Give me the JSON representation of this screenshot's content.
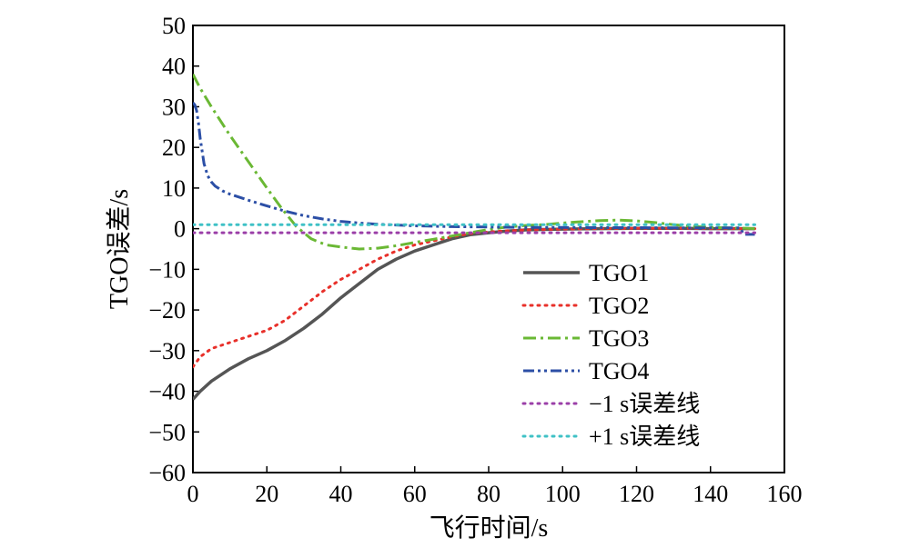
{
  "chart_data": {
    "type": "line",
    "title": "",
    "xlabel": "飞行时间/s",
    "ylabel": "TGO误差/s",
    "xlim": [
      0,
      160
    ],
    "ylim": [
      -60,
      50
    ],
    "xticks": [
      "0",
      "20",
      "40",
      "60",
      "80",
      "100",
      "120",
      "140",
      "160"
    ],
    "yticks": [
      "50",
      "40",
      "30",
      "20",
      "10",
      "0",
      "−10",
      "−20",
      "−30",
      "−40",
      "−50",
      "−60"
    ],
    "grid": false,
    "legend_position": "bottom-right",
    "series": [
      {
        "name": "TGO1",
        "color": "#555555",
        "dash": "solid",
        "x": [
          0,
          2,
          5,
          10,
          15,
          20,
          25,
          30,
          35,
          40,
          45,
          50,
          55,
          60,
          65,
          70,
          75,
          80,
          85,
          90,
          95,
          100,
          110,
          120,
          130,
          140,
          150,
          152
        ],
        "y": [
          -42,
          -40,
          -37.5,
          -34.5,
          -32,
          -30,
          -27.5,
          -24.5,
          -21,
          -17,
          -13.5,
          -10,
          -7.5,
          -5.5,
          -4,
          -2.5,
          -1.5,
          -1,
          -0.6,
          -0.3,
          -0.2,
          -0.1,
          0,
          0.1,
          0.1,
          0,
          0,
          0
        ]
      },
      {
        "name": "TGO2",
        "color": "#e8302a",
        "dash": "dotted",
        "x": [
          0,
          2,
          5,
          10,
          15,
          20,
          25,
          30,
          35,
          40,
          45,
          50,
          55,
          60,
          65,
          70,
          75,
          80,
          85,
          90,
          95,
          100,
          110,
          120,
          130,
          140,
          150,
          152
        ],
        "y": [
          -34,
          -31.5,
          -29.5,
          -28,
          -26.5,
          -25,
          -22.5,
          -19,
          -15.5,
          -12.5,
          -10,
          -7.5,
          -5.5,
          -4,
          -3,
          -2,
          -1.2,
          -0.8,
          -0.5,
          -0.3,
          -0.2,
          -0.1,
          0,
          0.1,
          0.1,
          0,
          0,
          0
        ]
      },
      {
        "name": "TGO3",
        "color": "#6ab834",
        "dash": "dashdot",
        "x": [
          0,
          2,
          5,
          10,
          15,
          20,
          24,
          28,
          32,
          36,
          40,
          45,
          50,
          55,
          60,
          65,
          70,
          75,
          80,
          85,
          90,
          95,
          100,
          105,
          110,
          115,
          120,
          125,
          130,
          135,
          140,
          145,
          150,
          152
        ],
        "y": [
          38,
          34.5,
          30,
          23,
          16.5,
          10,
          5,
          0.5,
          -2.5,
          -4,
          -4.5,
          -5,
          -4.8,
          -4.2,
          -3.4,
          -2.6,
          -1.8,
          -1,
          -0.2,
          0.4,
          0.8,
          1,
          1.4,
          1.7,
          2,
          2.1,
          1.9,
          1.5,
          1,
          0.6,
          0.3,
          0.2,
          0.1,
          0
        ]
      },
      {
        "name": "TGO4",
        "color": "#2c4fa6",
        "dash": "dashdotdot",
        "x": [
          0,
          0.5,
          1,
          1.5,
          2,
          2.5,
          3,
          4,
          5,
          6,
          8,
          10,
          15,
          20,
          25,
          30,
          35,
          40,
          45,
          50,
          55,
          60,
          70,
          80,
          90,
          100,
          110,
          120,
          130,
          140,
          148,
          149,
          150,
          151,
          152
        ],
        "y": [
          31,
          30.5,
          29,
          26,
          22,
          19,
          16,
          13,
          11.5,
          10.5,
          9.3,
          8.5,
          7,
          5.6,
          4.3,
          3.2,
          2.4,
          1.8,
          1.4,
          1.1,
          0.9,
          0.7,
          0.5,
          0.4,
          0.3,
          0.3,
          0.25,
          0.25,
          0.2,
          0.2,
          0.2,
          -1.4,
          -1.4,
          -1.4,
          -1.4
        ]
      },
      {
        "name": "−1 s误差线",
        "color": "#9b3fa8",
        "dash": "dotted",
        "x": [
          0,
          152
        ],
        "y": [
          -1,
          -1
        ]
      },
      {
        "name": "+1 s误差线",
        "color": "#3fc1c6",
        "dash": "dotted",
        "x": [
          0,
          152
        ],
        "y": [
          1,
          1
        ]
      }
    ]
  }
}
